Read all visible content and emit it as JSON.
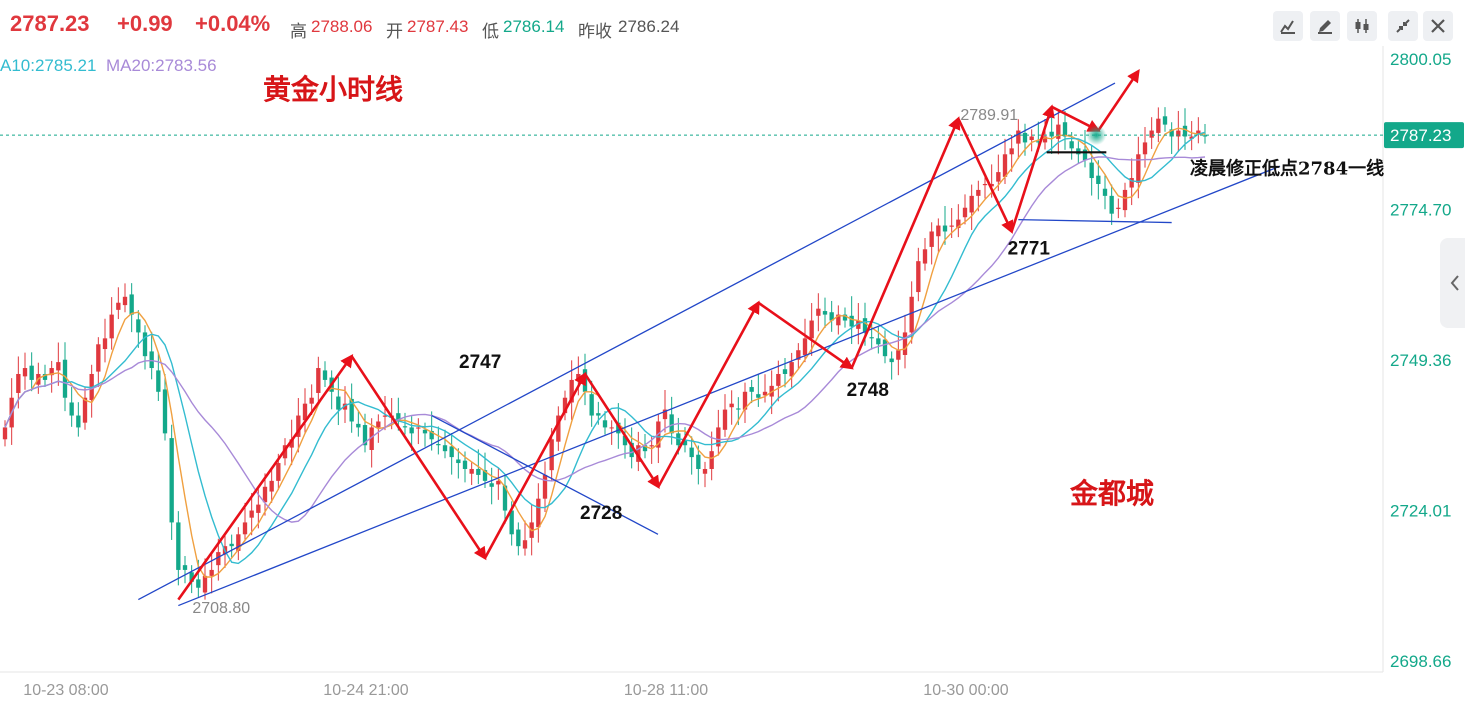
{
  "header": {
    "price": "2787.23",
    "change": "+0.99",
    "change_pct": "+0.04%",
    "high_label": "高",
    "high": "2788.06",
    "open_label": "开",
    "open": "2787.43",
    "low_label": "低",
    "low": "2786.14",
    "prev_close_label": "昨收",
    "prev_close": "2786.24"
  },
  "ma": {
    "ma10": "A10:2785.21",
    "ma20": "MA20:2783.56"
  },
  "toolbar": {
    "buttons": [
      "chart-type-icon",
      "draw-icon",
      "candlestick-icon",
      "collapse-icon",
      "close-icon"
    ]
  },
  "colors": {
    "up": "#e0383e",
    "down": "#13a88a",
    "ma5": "#f0a040",
    "ma10": "#33bcd0",
    "ma20": "#a88ad8",
    "trend": "#2247c8",
    "arrow": "#e8101a"
  },
  "chart_data": {
    "type": "candlestick",
    "title": "黄金小时线",
    "watermark": "金都城",
    "current_price_tag": "2787.23",
    "y_ticks": [
      "2800.05",
      "2774.70",
      "2749.36",
      "2724.01",
      "2698.66"
    ],
    "ylim": [
      2698.66,
      2800.05
    ],
    "x_ticks": [
      "10-23 08:00",
      "10-24 21:00",
      "10-28 11:00",
      "10-30 00:00"
    ],
    "annotations": [
      {
        "text": "2747",
        "price": 2747
      },
      {
        "text": "2728",
        "price": 2728
      },
      {
        "text": "2748",
        "price": 2748
      },
      {
        "text": "2771",
        "price": 2771
      },
      {
        "text": "2789.91",
        "price": 2789.91
      },
      {
        "text": "2708.80",
        "price": 2708.8
      },
      {
        "text": "凌晨修正低点2784一线",
        "price": 2784
      }
    ],
    "zigzag": [
      2709,
      2750,
      2716,
      2747,
      2728,
      2759,
      2748,
      2790,
      2771,
      2792,
      2788,
      2798
    ],
    "close": [
      2738,
      2743,
      2747,
      2748,
      2746,
      2747,
      2746,
      2748,
      2749,
      2743,
      2740,
      2738,
      2743,
      2747,
      2752,
      2753,
      2757,
      2759,
      2760,
      2757,
      2754,
      2750,
      2748,
      2744,
      2737,
      2722,
      2714,
      2714,
      2712,
      2711,
      2713,
      2714,
      2717,
      2718,
      2718,
      2720,
      2722,
      2724,
      2725,
      2728,
      2729,
      2732,
      2735,
      2736,
      2740,
      2742,
      2743,
      2748,
      2746,
      2744,
      2741,
      2742,
      2739,
      2738,
      2735,
      2738,
      2739,
      2740,
      2740,
      2739,
      2738,
      2737,
      2738,
      2737,
      2736,
      2735,
      2734,
      2733,
      2732,
      2731,
      2731,
      2730,
      2729,
      2728,
      2729,
      2724,
      2720,
      2718,
      2719,
      2722,
      2726,
      2730,
      2736,
      2740,
      2743,
      2746,
      2747,
      2744,
      2740,
      2740,
      2738,
      2738,
      2737,
      2735,
      2733,
      2735,
      2734,
      2735,
      2739,
      2741,
      2737,
      2735,
      2735,
      2733,
      2731,
      2731,
      2734,
      2738,
      2741,
      2742,
      2741,
      2744,
      2744,
      2743,
      2744,
      2745,
      2747,
      2747,
      2749,
      2751,
      2753,
      2756,
      2758,
      2757,
      2756,
      2757,
      2756,
      2755,
      2756,
      2754,
      2753,
      2752,
      2750,
      2749,
      2751,
      2754,
      2760,
      2766,
      2768,
      2771,
      2772,
      2771,
      2772,
      2773,
      2775,
      2777,
      2778,
      2779,
      2779,
      2781,
      2784,
      2785,
      2788,
      2786,
      2787,
      2786,
      2787,
      2787,
      2789,
      2787,
      2785,
      2784,
      2783,
      2780,
      2779,
      2777,
      2774,
      2775,
      2778,
      2780,
      2784,
      2786,
      2788,
      2790,
      2789,
      2787,
      2788,
      2787,
      2787,
      2788,
      2787
    ]
  }
}
